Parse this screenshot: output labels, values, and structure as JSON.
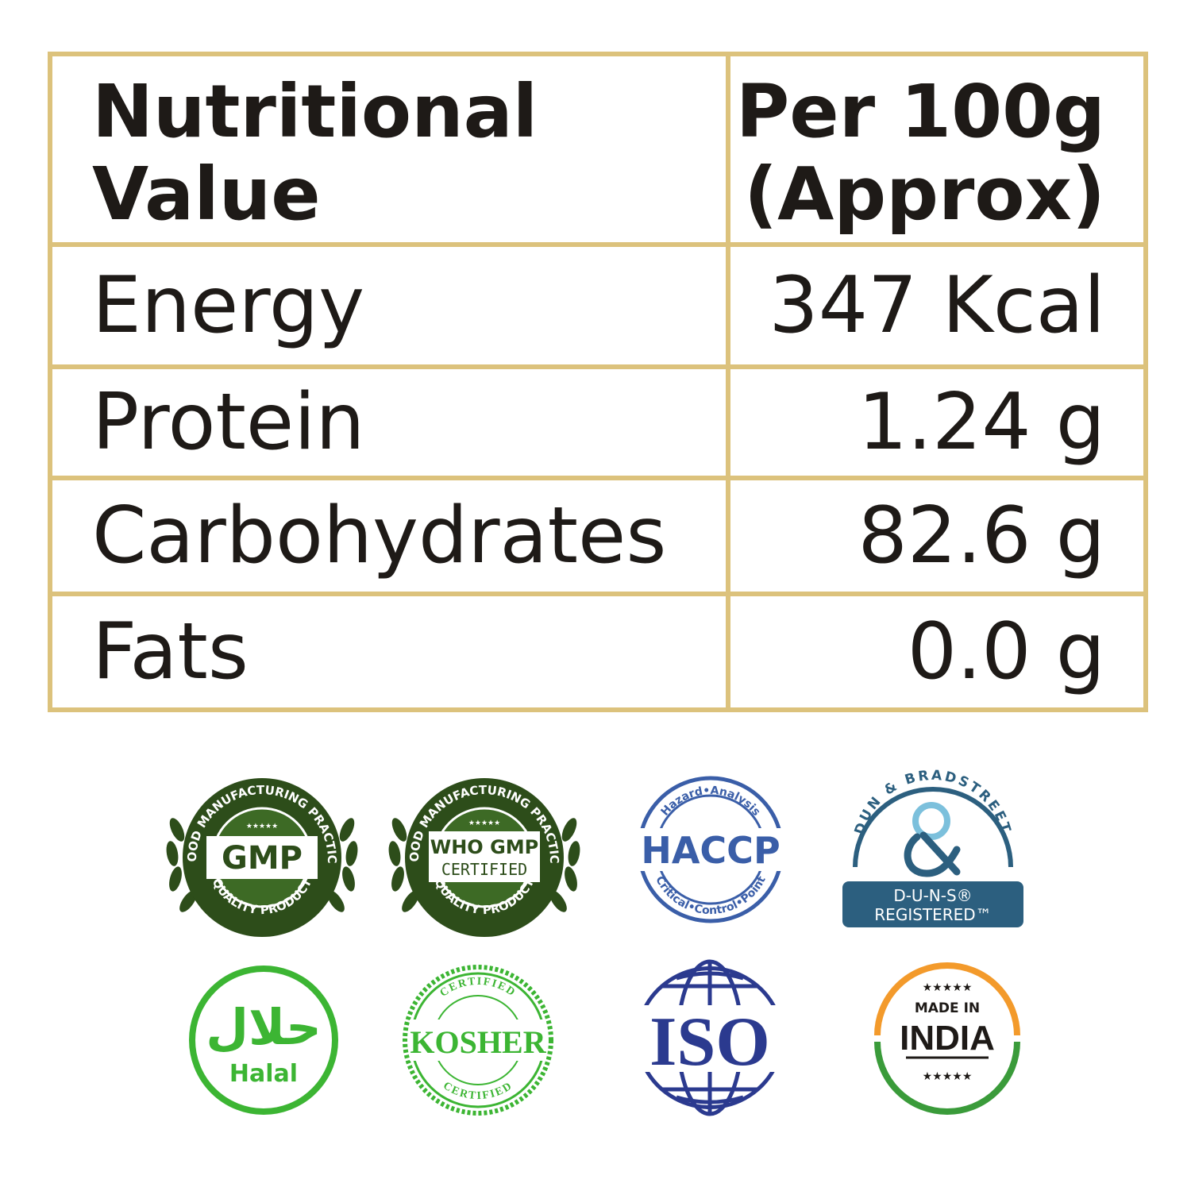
{
  "nutrition_table": {
    "header": {
      "nutrient_line1": "Nutritional",
      "nutrient_line2": "Value",
      "amount_line1": "Per 100g",
      "amount_line2": "(Approx)"
    },
    "rows": [
      {
        "nutrient": "Energy",
        "amount": "347 Kcal"
      },
      {
        "nutrient": "Protein",
        "amount": "1.24 g"
      },
      {
        "nutrient": "Carbohydrates",
        "amount": "82.6 g"
      },
      {
        "nutrient": "Fats",
        "amount": "0.0 g"
      }
    ],
    "border_color": "#dcc27c"
  },
  "badges": {
    "gmp": {
      "arc_top": "GOOD MANUFACTURING PRACTICE",
      "center": "GMP",
      "arc_bottom": "QUALITY PRODUCT",
      "stars": "★★★★★",
      "color": "#2d4d1a"
    },
    "who_gmp": {
      "arc_top": "GOOD MANUFACTURING PRACTICE",
      "center_line1": "WHO GMP",
      "center_line2": "CERTIFIED",
      "arc_bottom": "QUALITY PRODUCT",
      "stars": "★★★★★",
      "color": "#2d4d1a"
    },
    "haccp": {
      "arc_top": "Hazard•Analysis",
      "center": "HACCP",
      "arc_bottom": "Critical•Control•Point",
      "color": "#3a5ea8"
    },
    "duns": {
      "arc_top": "DUN & BRADSTREET",
      "line1": "D-U-N-S®",
      "line2": "REGISTERED™",
      "color": "#2c5f7f"
    },
    "halal": {
      "script": "حلال",
      "label": "Halal",
      "color": "#3cb533"
    },
    "kosher": {
      "arc_top": "CERTIFIED",
      "center": "KOSHER",
      "arc_bottom": "CERTIFIED",
      "color": "#3cb533"
    },
    "iso": {
      "center": "ISO",
      "color": "#2b3a8f"
    },
    "made_in_india": {
      "line1": "MADE IN",
      "line2": "INDIA",
      "stars_top": "★★★★★",
      "stars_bottom": "★★★★★",
      "saffron": "#f39a2b",
      "green": "#3a9b3a"
    }
  }
}
